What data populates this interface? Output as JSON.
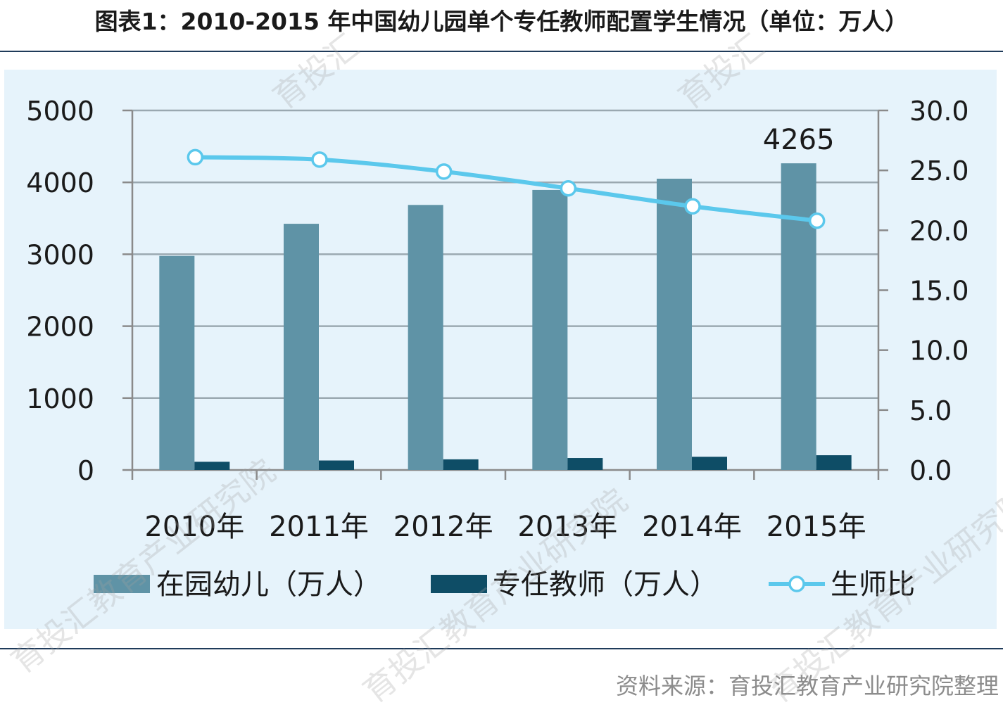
{
  "title": "图表1：2010-2015 年中国幼儿园单个专任教师配置学生情况（单位：万人）",
  "source": "资料来源：育投汇教育产业研究院整理",
  "watermarks": [
    "育投汇",
    "育投汇",
    "育投汇教育产业研究院",
    "育投汇教育产业研究院",
    "育投汇教育产业研究院",
    "育投汇教育产业"
  ],
  "chart_data": {
    "type": "bar+line",
    "categories": [
      "2010年",
      "2011年",
      "2012年",
      "2013年",
      "2014年",
      "2015年"
    ],
    "series": [
      {
        "name": "在园幼儿（万人）",
        "type": "bar",
        "axis": "left",
        "color": "#5f93a6",
        "values": [
          2977,
          3424,
          3686,
          3895,
          4051,
          4265
        ]
      },
      {
        "name": "专任教师（万人）",
        "type": "bar",
        "axis": "left",
        "color": "#0e4d66",
        "values": [
          114,
          132,
          148,
          166,
          184,
          205
        ]
      },
      {
        "name": "生师比",
        "type": "line",
        "axis": "right",
        "color": "#5bc8ec",
        "values": [
          26.1,
          25.9,
          24.9,
          23.5,
          22.0,
          20.8
        ]
      }
    ],
    "annotations": [
      {
        "category": "2015年",
        "series": "在园幼儿（万人）",
        "text": "4265"
      }
    ],
    "left_axis": {
      "ylim": [
        0,
        5000
      ],
      "ticks": [
        "0",
        "1000",
        "2000",
        "3000",
        "4000",
        "5000"
      ]
    },
    "right_axis": {
      "ylim": [
        0,
        30
      ],
      "ticks": [
        "0.0",
        "5.0",
        "10.0",
        "15.0",
        "20.0",
        "25.0",
        "30.0"
      ]
    },
    "grid": true,
    "legend_position": "bottom"
  }
}
